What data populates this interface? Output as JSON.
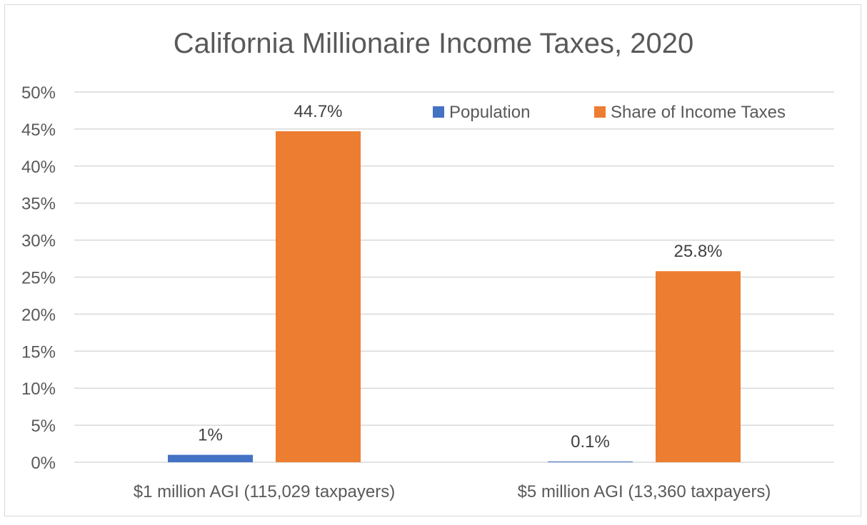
{
  "chart_data": {
    "type": "bar",
    "title": "California Millionaire Income Taxes, 2020",
    "categories": [
      "$1 million AGI (115,029 taxpayers)",
      "$5 million AGI (13,360 taxpayers)"
    ],
    "series": [
      {
        "name": "Population",
        "values": [
          1.0,
          0.1
        ],
        "labels": [
          "1%",
          "0.1%"
        ],
        "color": "#4472c4"
      },
      {
        "name": "Share of Income Taxes",
        "values": [
          44.7,
          25.8
        ],
        "labels": [
          "44.7%",
          "25.8%"
        ],
        "color": "#ed7d31"
      }
    ],
    "ylim": [
      0,
      50
    ],
    "yticks": [
      "0%",
      "5%",
      "10%",
      "15%",
      "20%",
      "25%",
      "30%",
      "35%",
      "40%",
      "45%",
      "50%"
    ],
    "grid": true,
    "legend": "top-right",
    "colors": {
      "grid": "#d9d9d9",
      "text": "#595959",
      "border": "#d9d9d9"
    }
  }
}
